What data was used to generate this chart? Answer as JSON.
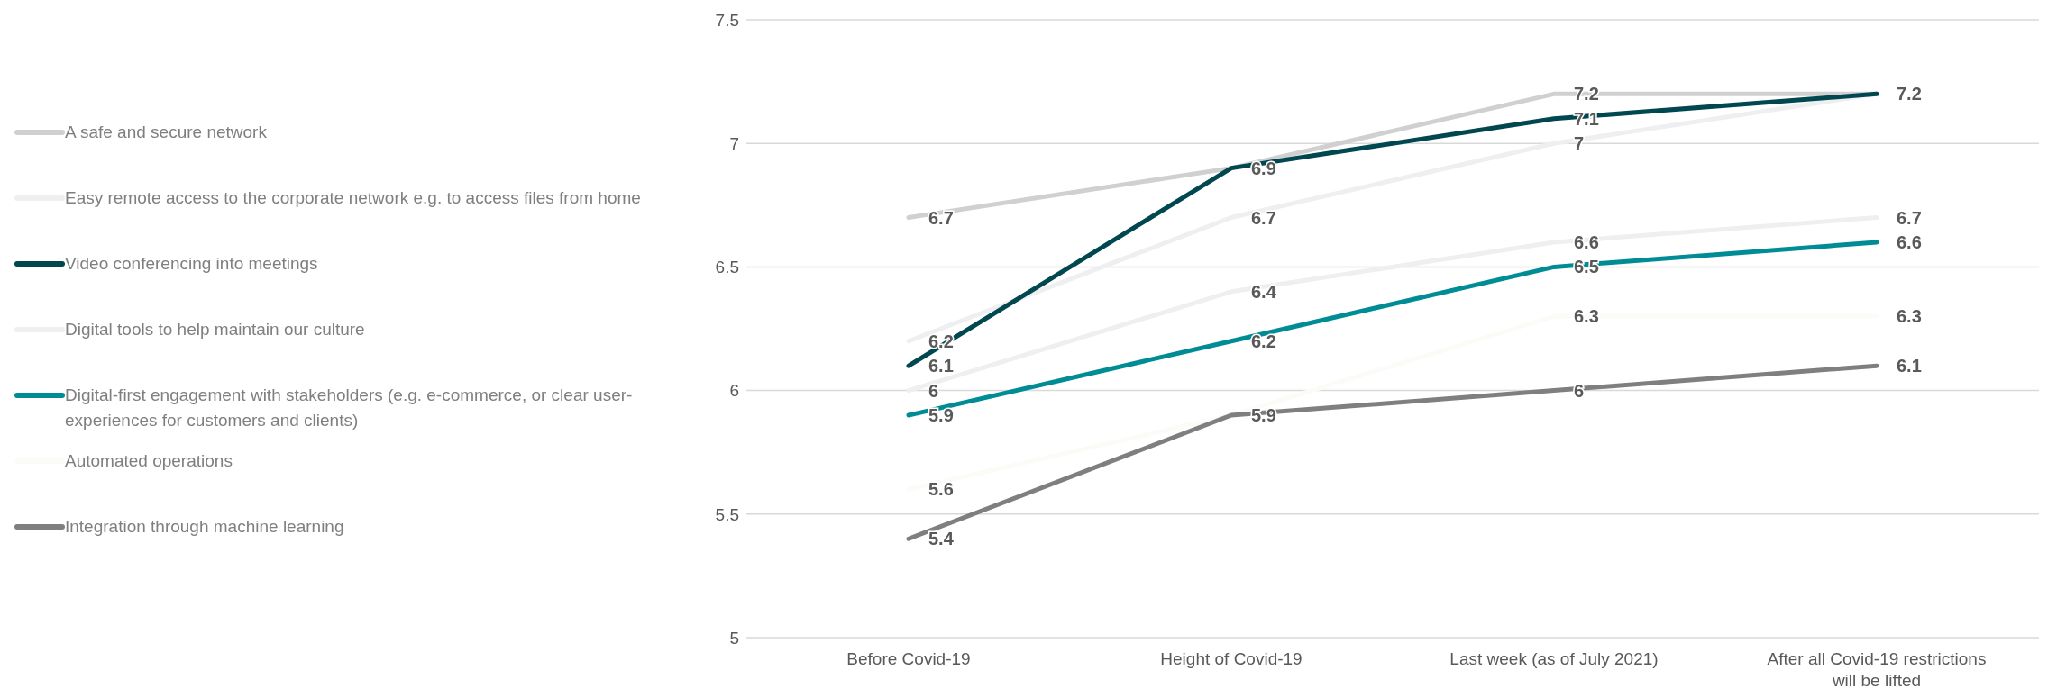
{
  "chart_data": {
    "type": "line",
    "categories": [
      "Before Covid-19",
      "Height of Covid-19",
      "Last week (as of July 2021)",
      "After all Covid-19 restrictions will be lifted"
    ],
    "series": [
      {
        "name": "A safe and secure network",
        "color": "#d0d0d0",
        "values": [
          6.7,
          6.9,
          7.2,
          7.2
        ],
        "value_labels": [
          "6.7",
          null,
          "7.2",
          null
        ]
      },
      {
        "name": "Easy remote access to the corporate network e.g. to access files from home",
        "color": "#eeeff1",
        "values": [
          6.2,
          6.7,
          7.0,
          7.2
        ],
        "value_labels": [
          "6.2",
          "6.7",
          "7",
          null
        ]
      },
      {
        "name": "Video conferencing into meetings",
        "color": "#004750",
        "values": [
          6.1,
          6.9,
          7.1,
          7.2
        ],
        "value_labels": [
          "6.1",
          "6.9",
          "7.1",
          "7.2"
        ]
      },
      {
        "name": "Digital tools to help maintain our culture",
        "color": "#eff0ee",
        "values": [
          6.0,
          6.4,
          6.6,
          6.7
        ],
        "value_labels": [
          "6",
          "6.4",
          "6.6",
          "6.7"
        ]
      },
      {
        "name": "Digital-first engagement with stakeholders (e.g. e-commerce, or clear user-experiences for customers and clients)",
        "color": "#008c95",
        "values": [
          5.9,
          6.2,
          6.5,
          6.6
        ],
        "value_labels": [
          "5.9",
          "6.2",
          "6.5",
          "6.6"
        ]
      },
      {
        "name": "Automated operations",
        "color": "#fbfbf8",
        "values": [
          5.6,
          5.9,
          6.3,
          6.3
        ],
        "value_labels": [
          "5.6",
          null,
          "6.3",
          "6.3"
        ]
      },
      {
        "name": "Integration through machine learning",
        "color": "#7f7f7f",
        "values": [
          5.4,
          5.9,
          6.0,
          6.1
        ],
        "value_labels": [
          "5.4",
          "5.9",
          "6",
          "6.1"
        ]
      }
    ],
    "ylim": [
      5,
      7.5
    ],
    "yticks": [
      5,
      5.5,
      6,
      6.5,
      7,
      7.5
    ],
    "grid": "y",
    "legend": "left",
    "marker": "none",
    "line_style": "solid"
  }
}
